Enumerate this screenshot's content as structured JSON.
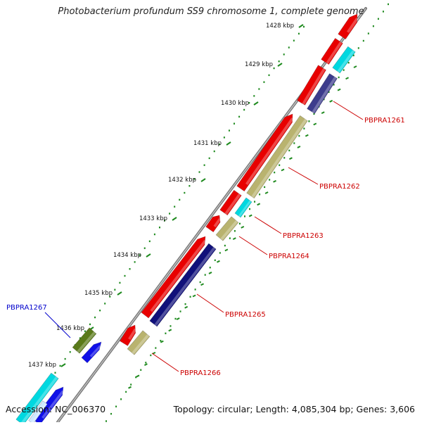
{
  "title": "Photobacterium profundum SS9 chromosome 1, complete genome",
  "footer": {
    "accession": "Accession: NC_006370",
    "summary": "Topology: circular; Length: 4,085,304 bp; Genes: 3,606"
  },
  "colors": {
    "backbone": "#888888",
    "tick": "#1e8a1e",
    "forward_cds": "#e80000",
    "reverse_cds": "#10107a",
    "cog_tan": "#b9b36f",
    "cog_cyan": "#00d8e0",
    "cog_olive": "#5a7a1a",
    "cog_blue": "#1010e8",
    "cog_slate": "#3c3c8c",
    "label_red": "#cc0000",
    "label_blue": "#0000cc"
  },
  "scale_labels": [
    "1428 kbp",
    "1429 kbp",
    "1430 kbp",
    "1431 kbp",
    "1432 kbp",
    "1433 kbp",
    "1434 kbp",
    "1435 kbp",
    "1436 kbp",
    "1437 kbp"
  ],
  "gene_labels": [
    {
      "name": "PBPRA1261",
      "color": "red"
    },
    {
      "name": "PBPRA1262",
      "color": "red"
    },
    {
      "name": "PBPRA1263",
      "color": "red"
    },
    {
      "name": "PBPRA1264",
      "color": "red"
    },
    {
      "name": "PBPRA1265",
      "color": "red"
    },
    {
      "name": "PBPRA1266",
      "color": "red"
    },
    {
      "name": "PBPRA1267",
      "color": "blue"
    }
  ]
}
